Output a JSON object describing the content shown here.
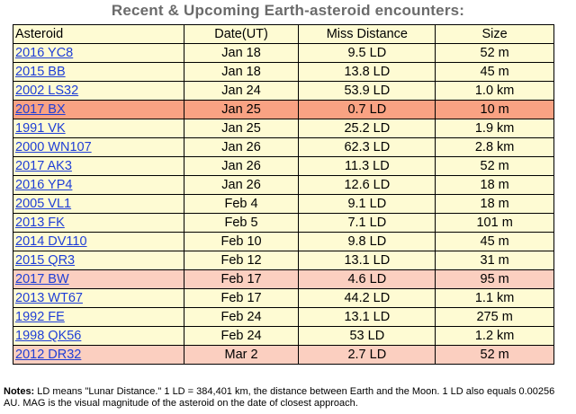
{
  "title": "Recent & Upcoming Earth-asteroid encounters:",
  "columns": [
    "Asteroid",
    "Date(UT)",
    "Miss Distance",
    "Size"
  ],
  "rows": [
    {
      "name": "2016 YC8",
      "date": "Jan 18",
      "miss": "9.5 LD",
      "size": "52 m",
      "highlight": ""
    },
    {
      "name": "2015 BB",
      "date": "Jan 18",
      "miss": "13.8 LD",
      "size": "45 m",
      "highlight": ""
    },
    {
      "name": "2002 LS32",
      "date": "Jan 24",
      "miss": "53.9 LD",
      "size": "1.0 km",
      "highlight": ""
    },
    {
      "name": "2017 BX",
      "date": "Jan 25",
      "miss": "0.7 LD",
      "size": "10 m",
      "highlight": "strong"
    },
    {
      "name": "1991 VK",
      "date": "Jan 25",
      "miss": "25.2 LD",
      "size": "1.9 km",
      "highlight": ""
    },
    {
      "name": "2000 WN107",
      "date": "Jan 26",
      "miss": "62.3 LD",
      "size": "2.8 km",
      "highlight": ""
    },
    {
      "name": "2017 AK3",
      "date": "Jan 26",
      "miss": "11.3 LD",
      "size": "52 m",
      "highlight": ""
    },
    {
      "name": "2016 YP4",
      "date": "Jan 26",
      "miss": "12.6 LD",
      "size": "18 m",
      "highlight": ""
    },
    {
      "name": "2005 VL1",
      "date": "Feb 4",
      "miss": "9.1 LD",
      "size": "18 m",
      "highlight": ""
    },
    {
      "name": "2013 FK",
      "date": "Feb 5",
      "miss": "7.1 LD",
      "size": "101 m",
      "highlight": ""
    },
    {
      "name": "2014 DV110",
      "date": "Feb 10",
      "miss": "9.8 LD",
      "size": "45 m",
      "highlight": ""
    },
    {
      "name": "2015 QR3",
      "date": "Feb 12",
      "miss": "13.1 LD",
      "size": "31 m",
      "highlight": ""
    },
    {
      "name": "2017 BW",
      "date": "Feb 17",
      "miss": "4.6 LD",
      "size": "95 m",
      "highlight": "light"
    },
    {
      "name": "2013 WT67",
      "date": "Feb 17",
      "miss": "44.2 LD",
      "size": "1.1 km",
      "highlight": ""
    },
    {
      "name": "1992 FE",
      "date": "Feb 24",
      "miss": "13.1 LD",
      "size": "275 m",
      "highlight": ""
    },
    {
      "name": "1998 QK56",
      "date": "Feb 24",
      "miss": "53 LD",
      "size": "1.2 km",
      "highlight": ""
    },
    {
      "name": "2012 DR32",
      "date": "Mar 2",
      "miss": "2.7 LD",
      "size": "52 m",
      "highlight": "light"
    }
  ],
  "colors": {
    "table_bg": "#fefbd3",
    "highlight_strong": "#f9a283",
    "highlight_light": "#fbcfc0",
    "link": "#1f3ed6",
    "title": "#6b6b6b"
  },
  "notes": {
    "label": "Notes:",
    "text": " LD means \"Lunar Distance.\" 1 LD = 384,401 km, the distance between Earth and the Moon. 1 LD also equals 0.00256 AU. MAG is the visual magnitude of the asteroid on the date of closest approach."
  }
}
